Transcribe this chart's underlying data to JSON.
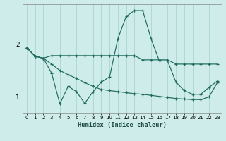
{
  "xlabel": "Humidex (Indice chaleur)",
  "xlim": [
    -0.5,
    23.5
  ],
  "ylim": [
    0.7,
    2.75
  ],
  "yticks": [
    1,
    2
  ],
  "xticks": [
    0,
    1,
    2,
    3,
    4,
    5,
    6,
    7,
    8,
    9,
    10,
    11,
    12,
    13,
    14,
    15,
    16,
    17,
    18,
    19,
    20,
    21,
    22,
    23
  ],
  "bg_color": "#ceecea",
  "line_color": "#1e6b5e",
  "grid_color": "#b0d8d4",
  "line1_y": [
    1.93,
    1.77,
    1.73,
    1.78,
    1.78,
    1.78,
    1.78,
    1.78,
    1.78,
    1.78,
    1.78,
    1.78,
    1.78,
    1.78,
    1.7,
    1.7,
    1.7,
    1.7,
    1.62,
    1.62,
    1.62,
    1.62,
    1.62,
    1.62
  ],
  "line2_y": [
    1.93,
    1.77,
    1.73,
    1.45,
    0.87,
    1.2,
    1.1,
    0.88,
    1.1,
    1.28,
    1.38,
    2.1,
    2.52,
    2.63,
    2.63,
    2.1,
    1.68,
    1.68,
    1.28,
    1.12,
    1.05,
    1.05,
    1.18,
    1.3
  ],
  "line3_y": [
    1.93,
    1.77,
    1.73,
    1.62,
    1.5,
    1.42,
    1.35,
    1.27,
    1.2,
    1.14,
    1.12,
    1.1,
    1.08,
    1.06,
    1.05,
    1.03,
    1.01,
    0.99,
    0.97,
    0.96,
    0.95,
    0.95,
    1.0,
    1.27
  ]
}
